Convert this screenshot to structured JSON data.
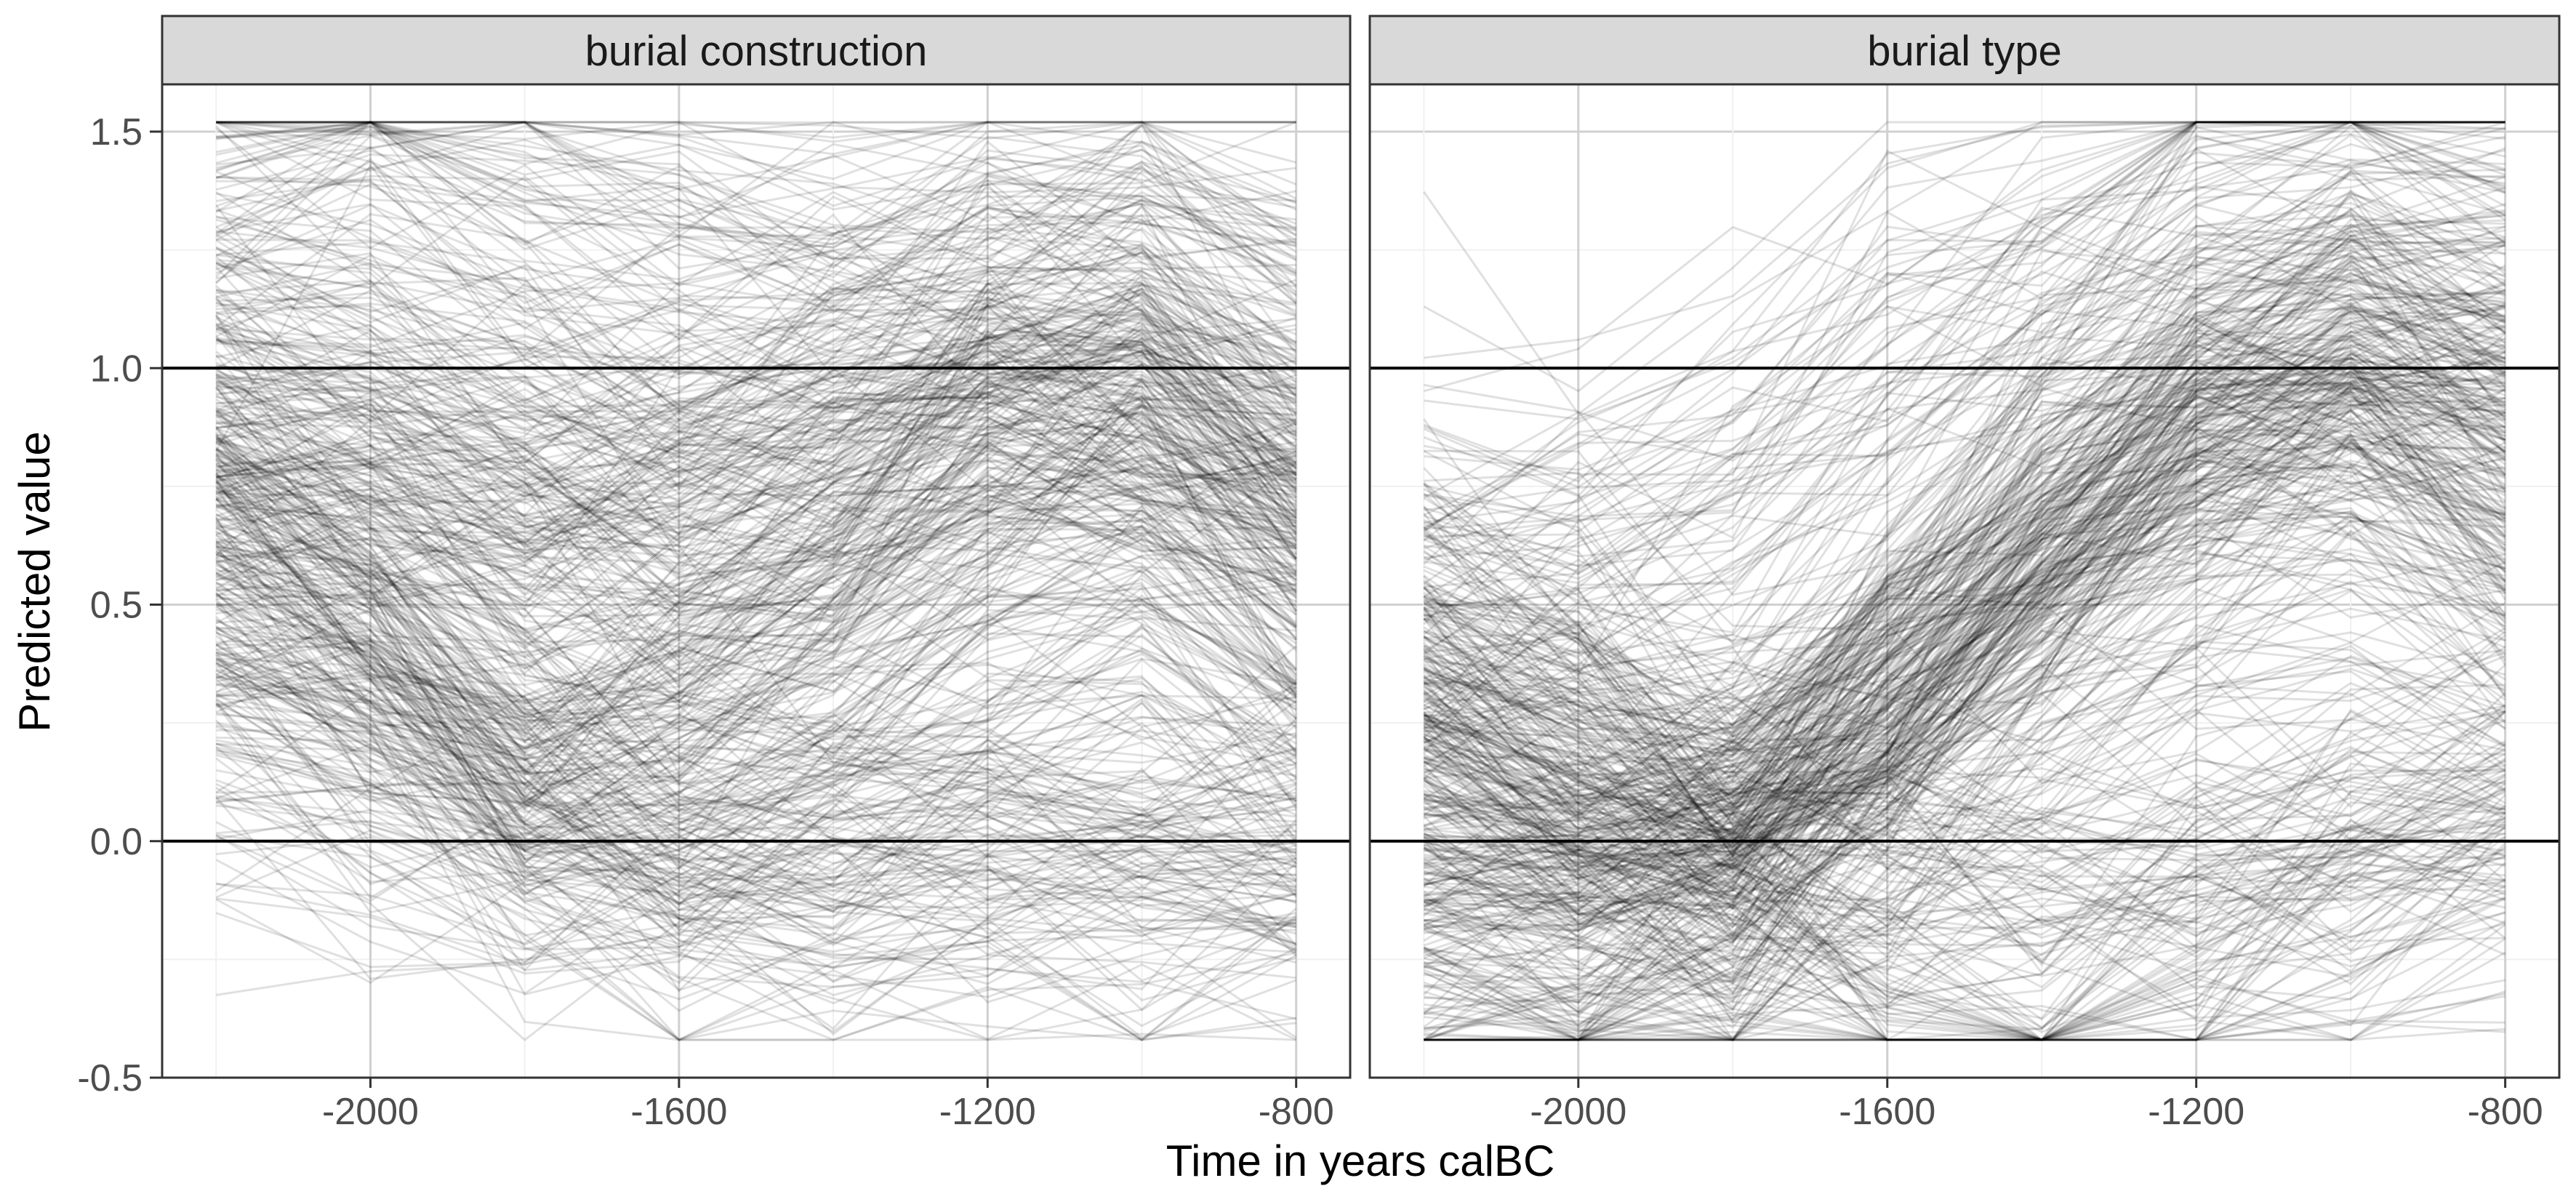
{
  "chart_data": {
    "type": "line",
    "title": "",
    "xlabel": "Time in years calBC",
    "ylabel": "Predicted value",
    "ylim": [
      -0.5,
      1.6
    ],
    "y_ticks": [
      "-0.5",
      "0.0",
      "0.5",
      "1.0",
      "1.5"
    ],
    "y_tick_values": [
      -0.5,
      0.0,
      0.5,
      1.0,
      1.5
    ],
    "reference_lines": [
      0,
      1
    ],
    "grid": true,
    "line_color": "#000000",
    "line_opacity": 0.12,
    "panels": [
      {
        "strip": "burial construction",
        "x": [
          -2200,
          -2000,
          -1800,
          -1600,
          -1400,
          -1200,
          -1000,
          -800
        ],
        "xlim": [
          -2270,
          -730
        ],
        "x_ticks": [
          "-2000",
          "-1600",
          "-1200",
          "-800"
        ],
        "x_tick_values": [
          -2000,
          -1600,
          -1200,
          -800
        ],
        "series_count": 500,
        "representative_series": [
          {
            "values": [
              0.72,
              0.45,
              0.18,
              -0.02,
              -0.05,
              0.0,
              -0.02,
              -0.03
            ]
          },
          {
            "values": [
              0.6,
              0.4,
              0.05,
              -0.08,
              -0.06,
              -0.03,
              -0.05,
              -0.04
            ]
          },
          {
            "values": [
              0.95,
              0.85,
              0.8,
              0.82,
              0.86,
              0.9,
              0.95,
              0.8
            ]
          },
          {
            "values": [
              0.8,
              0.75,
              0.7,
              0.78,
              0.85,
              0.92,
              0.88,
              0.78
            ]
          },
          {
            "values": [
              0.4,
              0.3,
              0.2,
              0.35,
              0.55,
              0.75,
              0.9,
              0.65
            ]
          },
          {
            "values": [
              1.4,
              1.45,
              1.35,
              1.25,
              1.2,
              1.25,
              1.35,
              1.2
            ]
          },
          {
            "values": [
              0.2,
              0.1,
              0.0,
              0.1,
              0.25,
              0.45,
              0.6,
              0.3
            ]
          },
          {
            "values": [
              1.05,
              1.0,
              0.85,
              0.6,
              0.75,
              1.1,
              1.0,
              0.7
            ]
          }
        ]
      },
      {
        "strip": "burial type",
        "x": [
          -2200,
          -2000,
          -1800,
          -1600,
          -1400,
          -1200,
          -1000,
          -800
        ],
        "xlim": [
          -2270,
          -730
        ],
        "x_ticks": [
          "-2000",
          "-1600",
          "-1200",
          "-800"
        ],
        "x_tick_values": [
          -2000,
          -1600,
          -1200,
          -800
        ],
        "series_count": 500,
        "representative_series": [
          {
            "values": [
              0.3,
              0.1,
              0.0,
              0.3,
              0.6,
              0.9,
              1.0,
              0.9
            ]
          },
          {
            "values": [
              0.0,
              -0.02,
              0.0,
              0.25,
              0.55,
              0.85,
              1.05,
              1.0
            ]
          },
          {
            "values": [
              0.1,
              0.05,
              0.02,
              0.0,
              -0.05,
              -0.05,
              0.0,
              0.05
            ]
          },
          {
            "values": [
              0.25,
              0.05,
              0.0,
              0.35,
              0.65,
              0.9,
              0.95,
              0.7
            ]
          },
          {
            "values": [
              -0.05,
              -0.05,
              0.05,
              0.4,
              0.75,
              1.0,
              1.1,
              1.05
            ]
          },
          {
            "values": [
              0.5,
              0.35,
              0.0,
              0.15,
              0.4,
              0.6,
              0.7,
              0.5
            ]
          },
          {
            "values": [
              -0.3,
              -0.3,
              -0.1,
              -0.3,
              -0.4,
              -0.2,
              0.0,
              0.1
            ]
          },
          {
            "values": [
              0.6,
              0.65,
              0.8,
              1.05,
              1.2,
              1.4,
              1.5,
              1.4
            ]
          }
        ]
      }
    ]
  }
}
